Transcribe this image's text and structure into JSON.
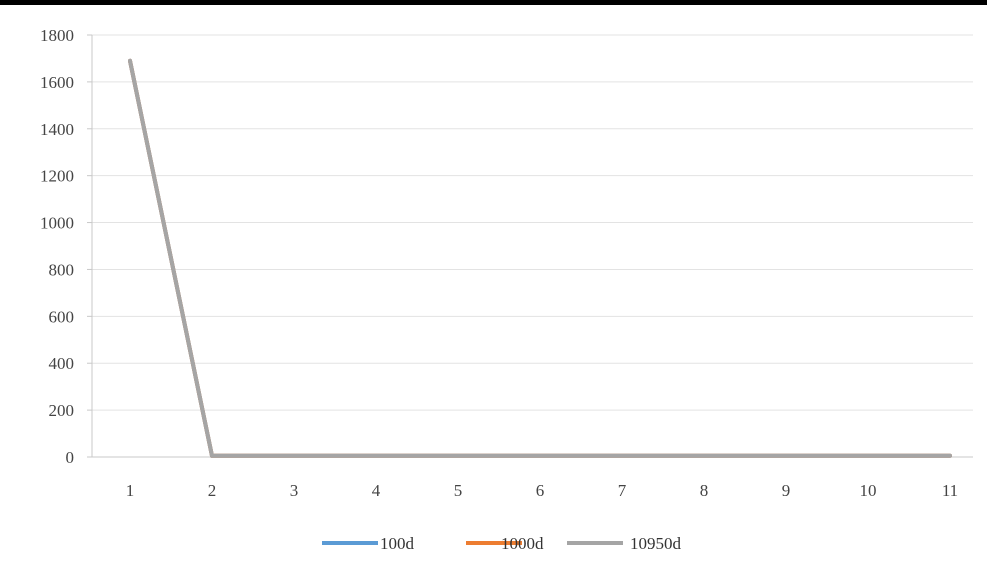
{
  "chart_data": {
    "type": "line",
    "title": "",
    "xlabel": "",
    "ylabel": "",
    "categories": [
      "1",
      "2",
      "3",
      "4",
      "5",
      "6",
      "7",
      "8",
      "9",
      "10",
      "11"
    ],
    "ylim": [
      0,
      1800
    ],
    "yticks": [
      0,
      200,
      400,
      600,
      800,
      1000,
      1200,
      1400,
      1600,
      1800
    ],
    "grid": true,
    "legend_position": "bottom",
    "series": [
      {
        "name": "100d",
        "color": "#5b9bd5",
        "values": [
          1690,
          5,
          5,
          5,
          5,
          5,
          5,
          5,
          5,
          5,
          5
        ]
      },
      {
        "name": "1000d",
        "color": "#ed7d31",
        "values": [
          1690,
          5,
          5,
          5,
          5,
          5,
          5,
          5,
          5,
          5,
          5
        ]
      },
      {
        "name": "10950d",
        "color": "#a5a5a5",
        "values": [
          1690,
          5,
          5,
          5,
          5,
          5,
          5,
          5,
          5,
          5,
          5
        ]
      }
    ],
    "colors": {
      "grid": "#e3e3e3",
      "axis": "#c8c8c8",
      "frame": "#000000"
    }
  }
}
